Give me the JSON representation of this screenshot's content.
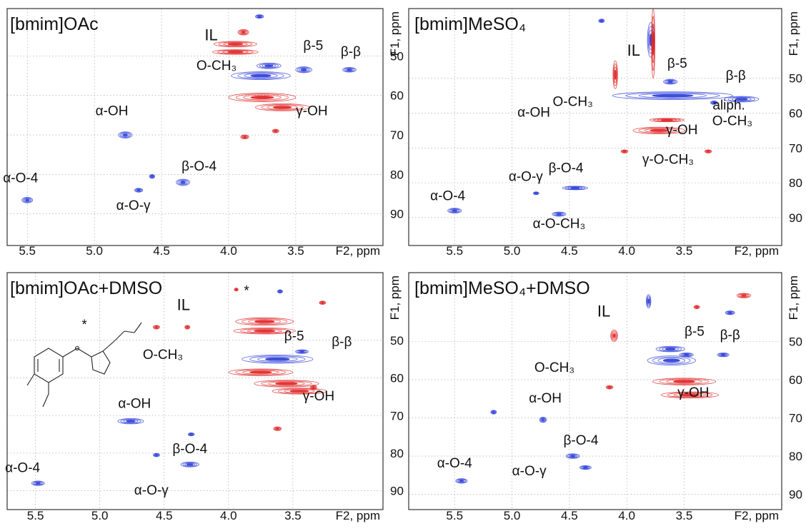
{
  "figure": {
    "colors": {
      "positive": "#e02020",
      "negative": "#2a3bd8",
      "frame": "#333333",
      "grid": "#9a9a9a"
    },
    "axis_labels": {
      "x": "F2, ppm",
      "y": "F1, ppm"
    }
  },
  "chart_data": [
    {
      "type": "scatter",
      "title": "[bmim]OAc",
      "xlabel": "F2, ppm",
      "ylabel": "F1, ppm",
      "xlim": [
        5.65,
        2.85
      ],
      "ylim": [
        38,
        98
      ],
      "x_ticks": [
        5.5,
        5.0,
        4.5,
        4.0,
        3.5
      ],
      "y_ticks": [
        50,
        60,
        70,
        80,
        90
      ],
      "y_axis_side": "right",
      "grid": true,
      "cross_peaks": [
        {
          "x": 3.89,
          "y": 44,
          "w": 0.08,
          "h": 1.4,
          "color": "red"
        },
        {
          "x": 3.95,
          "y": 47,
          "w": 0.32,
          "h": 1.4,
          "color": "red"
        },
        {
          "x": 3.95,
          "y": 49,
          "w": 0.34,
          "h": 1.2,
          "color": "red"
        },
        {
          "x": 3.76,
          "y": 55,
          "w": 0.44,
          "h": 2.0,
          "color": "blue"
        },
        {
          "x": 3.7,
          "y": 52.5,
          "w": 0.18,
          "h": 1.4,
          "color": "blue"
        },
        {
          "x": 3.44,
          "y": 53.5,
          "w": 0.12,
          "h": 1.5,
          "color": "blue"
        },
        {
          "x": 3.75,
          "y": 60.5,
          "w": 0.5,
          "h": 2.2,
          "color": "red"
        },
        {
          "x": 3.6,
          "y": 63,
          "w": 0.4,
          "h": 1.8,
          "color": "red"
        },
        {
          "x": 3.1,
          "y": 53.5,
          "w": 0.1,
          "h": 1.2,
          "color": "blue"
        },
        {
          "x": 4.77,
          "y": 70,
          "w": 0.1,
          "h": 1.6,
          "color": "blue"
        },
        {
          "x": 4.34,
          "y": 82,
          "w": 0.1,
          "h": 1.6,
          "color": "blue"
        },
        {
          "x": 4.57,
          "y": 80.5,
          "w": 0.04,
          "h": 1.0,
          "color": "blue"
        },
        {
          "x": 4.67,
          "y": 84,
          "w": 0.06,
          "h": 1.0,
          "color": "blue"
        },
        {
          "x": 5.5,
          "y": 86.5,
          "w": 0.08,
          "h": 1.4,
          "color": "blue"
        },
        {
          "x": 3.88,
          "y": 70.5,
          "w": 0.06,
          "h": 1.0,
          "color": "red"
        },
        {
          "x": 3.65,
          "y": 69,
          "w": 0.05,
          "h": 0.9,
          "color": "red"
        },
        {
          "x": 3.77,
          "y": 40,
          "w": 0.06,
          "h": 0.9,
          "color": "blue"
        }
      ],
      "annotations": [
        {
          "label": "IL",
          "x": 4.13,
          "y": 46
        },
        {
          "label": "β-5",
          "x": 3.37,
          "y": 48.5
        },
        {
          "label": "β-β",
          "x": 3.09,
          "y": 50
        },
        {
          "label": "O-CH₃",
          "x": 4.09,
          "y": 53.5
        },
        {
          "label": "γ-OH",
          "x": 3.38,
          "y": 65
        },
        {
          "label": "α-OH",
          "x": 4.87,
          "y": 65
        },
        {
          "label": "β-O-4",
          "x": 4.22,
          "y": 79
        },
        {
          "label": "α-O-4",
          "x": 5.55,
          "y": 82
        },
        {
          "label": "α-O-γ",
          "x": 4.71,
          "y": 89
        }
      ]
    },
    {
      "type": "scatter",
      "title": "[bmim]MeSO₄",
      "xlabel": "F2, ppm",
      "ylabel": "F1, ppm",
      "xlim": [
        5.9,
        2.65
      ],
      "ylim": [
        30,
        98
      ],
      "x_ticks": [
        5.5,
        5.0,
        4.5,
        4.0,
        3.5
      ],
      "y_ticks": [
        50,
        60,
        70,
        80,
        90
      ],
      "y_axis_side": "right",
      "grid": true,
      "cross_peaks": [
        {
          "x": 3.79,
          "y": 39,
          "w": 0.06,
          "h": 10,
          "color": "blue"
        },
        {
          "x": 3.77,
          "y": 40,
          "w": 0.03,
          "h": 20,
          "color": "red"
        },
        {
          "x": 4.1,
          "y": 49,
          "w": 0.04,
          "h": 8,
          "color": "red"
        },
        {
          "x": 3.62,
          "y": 51,
          "w": 0.12,
          "h": 1.4,
          "color": "blue"
        },
        {
          "x": 3.6,
          "y": 55,
          "w": 1.05,
          "h": 2.2,
          "color": "blue"
        },
        {
          "x": 3.0,
          "y": 56,
          "w": 0.3,
          "h": 1.6,
          "color": "blue"
        },
        {
          "x": 3.24,
          "y": 57,
          "w": 0.06,
          "h": 1.0,
          "color": "blue"
        },
        {
          "x": 3.72,
          "y": 65,
          "w": 0.45,
          "h": 1.9,
          "color": "red"
        },
        {
          "x": 3.65,
          "y": 62,
          "w": 0.3,
          "h": 1.0,
          "color": "red"
        },
        {
          "x": 4.02,
          "y": 71,
          "w": 0.06,
          "h": 0.9,
          "color": "red"
        },
        {
          "x": 3.29,
          "y": 71,
          "w": 0.06,
          "h": 0.9,
          "color": "red"
        },
        {
          "x": 4.22,
          "y": 33.5,
          "w": 0.05,
          "h": 1.0,
          "color": "blue"
        },
        {
          "x": 4.45,
          "y": 81.5,
          "w": 0.22,
          "h": 1.0,
          "color": "blue"
        },
        {
          "x": 4.79,
          "y": 83,
          "w": 0.05,
          "h": 0.8,
          "color": "blue"
        },
        {
          "x": 4.59,
          "y": 89,
          "w": 0.12,
          "h": 1.2,
          "color": "blue"
        },
        {
          "x": 5.5,
          "y": 88,
          "w": 0.12,
          "h": 1.4,
          "color": "blue"
        }
      ],
      "annotations": [
        {
          "label": "IL",
          "x": 3.94,
          "y": 43.5
        },
        {
          "label": "β-5",
          "x": 3.56,
          "y": 47
        },
        {
          "label": "β-β",
          "x": 3.05,
          "y": 50.5
        },
        {
          "label": "O-CH₃",
          "x": 4.47,
          "y": 58
        },
        {
          "label": "aliph.",
          "x": 3.11,
          "y": 59
        },
        {
          "label": "O-CH₃",
          "x": 3.08,
          "y": 63.5
        },
        {
          "label": "α-OH",
          "x": 4.81,
          "y": 61
        },
        {
          "label": "γ-OH",
          "x": 3.52,
          "y": 66
        },
        {
          "label": "β-O-4",
          "x": 4.53,
          "y": 77
        },
        {
          "label": "γ-O-CH₃",
          "x": 3.64,
          "y": 74.5
        },
        {
          "label": "α-O-γ",
          "x": 4.88,
          "y": 79.5
        },
        {
          "label": "α-O-4",
          "x": 5.56,
          "y": 85
        },
        {
          "label": "α-O-CH₃",
          "x": 4.59,
          "y": 93
        }
      ]
    },
    {
      "type": "scatter",
      "title": "[bmim]OAc+DMSO",
      "xlabel": "F2, ppm",
      "ylabel": "F1, ppm",
      "xlim": [
        5.72,
        2.8
      ],
      "ylim": [
        32,
        95
      ],
      "x_ticks": [
        5.5,
        5.0,
        4.5,
        4.0,
        3.5
      ],
      "y_ticks": [
        50,
        60,
        70,
        80,
        90
      ],
      "y_axis_side": "right",
      "grid": true,
      "cross_peaks": [
        {
          "x": 3.94,
          "y": 36.5,
          "w": 0.03,
          "h": 0.8,
          "color": "red"
        },
        {
          "x": 3.72,
          "y": 45,
          "w": 0.45,
          "h": 2.0,
          "color": "red"
        },
        {
          "x": 3.72,
          "y": 47.5,
          "w": 0.48,
          "h": 1.6,
          "color": "red"
        },
        {
          "x": 4.56,
          "y": 46.5,
          "w": 0.05,
          "h": 1.0,
          "color": "red"
        },
        {
          "x": 4.32,
          "y": 46.5,
          "w": 0.04,
          "h": 1.0,
          "color": "red"
        },
        {
          "x": 3.62,
          "y": 55,
          "w": 0.55,
          "h": 2.2,
          "color": "blue"
        },
        {
          "x": 3.75,
          "y": 58.5,
          "w": 0.5,
          "h": 1.8,
          "color": "red"
        },
        {
          "x": 3.55,
          "y": 61.5,
          "w": 0.5,
          "h": 1.8,
          "color": "red"
        },
        {
          "x": 3.45,
          "y": 63.5,
          "w": 0.42,
          "h": 1.6,
          "color": "red"
        },
        {
          "x": 3.43,
          "y": 53,
          "w": 0.1,
          "h": 1.0,
          "color": "blue"
        },
        {
          "x": 3.34,
          "y": 62.5,
          "w": 0.05,
          "h": 1.2,
          "color": "red"
        },
        {
          "x": 4.76,
          "y": 71.5,
          "w": 0.2,
          "h": 1.4,
          "color": "blue"
        },
        {
          "x": 4.29,
          "y": 75,
          "w": 0.05,
          "h": 0.8,
          "color": "blue"
        },
        {
          "x": 4.56,
          "y": 80.5,
          "w": 0.05,
          "h": 0.9,
          "color": "blue"
        },
        {
          "x": 4.3,
          "y": 83,
          "w": 0.14,
          "h": 1.3,
          "color": "blue"
        },
        {
          "x": 5.48,
          "y": 88,
          "w": 0.1,
          "h": 1.2,
          "color": "blue"
        },
        {
          "x": 3.62,
          "y": 73.5,
          "w": 0.06,
          "h": 1.0,
          "color": "red"
        },
        {
          "x": 3.6,
          "y": 37,
          "w": 0.04,
          "h": 0.9,
          "color": "blue"
        },
        {
          "x": 3.27,
          "y": 40,
          "w": 0.05,
          "h": 0.9,
          "color": "red"
        }
      ],
      "annotations": [
        {
          "label": "IL",
          "x": 4.35,
          "y": 42
        },
        {
          "label": "*",
          "x": 3.86,
          "y": 38
        },
        {
          "label": "*",
          "x": 5.12,
          "y": 47
        },
        {
          "label": "β-5",
          "x": 3.49,
          "y": 50
        },
        {
          "label": "β-β",
          "x": 3.12,
          "y": 51.5
        },
        {
          "label": "O-CH₃",
          "x": 4.51,
          "y": 55
        },
        {
          "label": "γ-OH",
          "x": 3.3,
          "y": 66
        },
        {
          "label": "α-OH",
          "x": 4.73,
          "y": 68
        },
        {
          "label": "β-O-4",
          "x": 4.3,
          "y": 80
        },
        {
          "label": "α-O-4",
          "x": 5.6,
          "y": 85
        },
        {
          "label": "α-O-γ",
          "x": 4.6,
          "y": 91
        }
      ]
    },
    {
      "type": "scatter",
      "title": "[bmim]MeSO₄+DMSO",
      "xlabel": "F2, ppm",
      "ylabel": "F1, ppm",
      "xlim": [
        5.9,
        2.65
      ],
      "ylim": [
        32,
        94
      ],
      "x_ticks": [
        5.5,
        5.0,
        4.5,
        4.0,
        3.5
      ],
      "y_ticks": [
        50,
        60,
        70,
        80,
        90
      ],
      "y_axis_side": "right",
      "grid": true,
      "cross_peaks": [
        {
          "x": 3.81,
          "y": 39.5,
          "w": 0.04,
          "h": 3.5,
          "color": "blue"
        },
        {
          "x": 4.11,
          "y": 48.5,
          "w": 0.06,
          "h": 3.0,
          "color": "red"
        },
        {
          "x": 3.61,
          "y": 55,
          "w": 0.42,
          "h": 2.4,
          "color": "blue"
        },
        {
          "x": 3.62,
          "y": 52,
          "w": 0.25,
          "h": 1.4,
          "color": "blue"
        },
        {
          "x": 3.48,
          "y": 53.5,
          "w": 0.12,
          "h": 1.0,
          "color": "blue"
        },
        {
          "x": 3.16,
          "y": 53.5,
          "w": 0.1,
          "h": 1.0,
          "color": "blue"
        },
        {
          "x": 3.5,
          "y": 60.5,
          "w": 0.55,
          "h": 1.8,
          "color": "red"
        },
        {
          "x": 3.45,
          "y": 64,
          "w": 0.5,
          "h": 1.6,
          "color": "red"
        },
        {
          "x": 4.73,
          "y": 70.5,
          "w": 0.06,
          "h": 1.4,
          "color": "blue"
        },
        {
          "x": 4.47,
          "y": 80,
          "w": 0.12,
          "h": 1.2,
          "color": "blue"
        },
        {
          "x": 4.36,
          "y": 83,
          "w": 0.1,
          "h": 1.0,
          "color": "blue"
        },
        {
          "x": 5.16,
          "y": 68.5,
          "w": 0.05,
          "h": 1.0,
          "color": "blue"
        },
        {
          "x": 5.44,
          "y": 86.5,
          "w": 0.1,
          "h": 1.2,
          "color": "blue"
        },
        {
          "x": 2.98,
          "y": 38,
          "w": 0.12,
          "h": 1.2,
          "color": "red"
        },
        {
          "x": 3.1,
          "y": 42.5,
          "w": 0.08,
          "h": 1.0,
          "color": "blue"
        },
        {
          "x": 3.39,
          "y": 41,
          "w": 0.05,
          "h": 0.9,
          "color": "red"
        },
        {
          "x": 4.15,
          "y": 62,
          "w": 0.06,
          "h": 0.9,
          "color": "red"
        }
      ],
      "annotations": [
        {
          "label": "IL",
          "x": 4.2,
          "y": 43.5
        },
        {
          "label": "β-5",
          "x": 3.41,
          "y": 48.5
        },
        {
          "label": "β-β",
          "x": 3.1,
          "y": 49.5
        },
        {
          "label": "O-CH₃",
          "x": 4.63,
          "y": 58
        },
        {
          "label": "γ-OH",
          "x": 3.42,
          "y": 64.5
        },
        {
          "label": "α-OH",
          "x": 4.71,
          "y": 66
        },
        {
          "label": "β-O-4",
          "x": 4.4,
          "y": 77
        },
        {
          "label": "α-O-4",
          "x": 5.5,
          "y": 83
        },
        {
          "label": "α-O-γ",
          "x": 4.85,
          "y": 85
        }
      ]
    }
  ]
}
